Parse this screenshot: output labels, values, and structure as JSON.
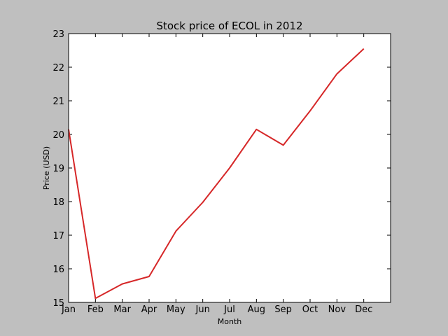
{
  "chart_data": {
    "type": "line",
    "title": "Stock price of ECOL in 2012",
    "xlabel": "Month",
    "ylabel": "Price (USD)",
    "categories": [
      "Jan",
      "Feb",
      "Mar",
      "Apr",
      "May",
      "Jun",
      "Jul",
      "Aug",
      "Sep",
      "Oct",
      "Nov",
      "Dec"
    ],
    "series": [
      {
        "values": [
          20.15,
          15.12,
          15.55,
          15.77,
          17.12,
          17.98,
          19.0,
          20.15,
          19.68,
          20.7,
          21.8,
          22.55
        ]
      }
    ],
    "xlim": [
      0,
      12
    ],
    "ylim": [
      15,
      23
    ],
    "yticks": [
      15,
      16,
      17,
      18,
      19,
      20,
      21,
      22,
      23
    ],
    "grid": false,
    "colors": {
      "line": "#d62728",
      "background": "#bfbfbf",
      "plot_background": "#ffffff"
    }
  }
}
